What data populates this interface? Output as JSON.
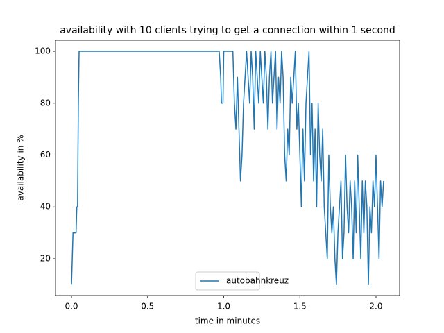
{
  "chart_data": {
    "type": "line",
    "title": "availability with 10 clients trying to get a connection within 1 second",
    "x_label": "time in minutes",
    "y_label": "availability in %",
    "x": [
      0,
      0.005,
      0.01,
      0.03,
      0.035,
      0.04,
      0.045,
      0.05,
      0.97,
      0.98,
      0.985,
      0.995,
      1.0,
      1.05,
      1.06,
      1.07,
      1.08,
      1.09,
      1.1,
      1.11,
      1.12,
      1.13,
      1.14,
      1.15,
      1.16,
      1.17,
      1.18,
      1.19,
      1.2,
      1.21,
      1.22,
      1.23,
      1.24,
      1.25,
      1.26,
      1.27,
      1.28,
      1.29,
      1.3,
      1.31,
      1.32,
      1.33,
      1.34,
      1.35,
      1.36,
      1.37,
      1.38,
      1.39,
      1.4,
      1.41,
      1.42,
      1.43,
      1.44,
      1.45,
      1.46,
      1.47,
      1.48,
      1.49,
      1.5,
      1.51,
      1.52,
      1.53,
      1.54,
      1.55,
      1.56,
      1.57,
      1.58,
      1.59,
      1.6,
      1.61,
      1.62,
      1.63,
      1.64,
      1.65,
      1.66,
      1.67,
      1.68,
      1.69,
      1.7,
      1.71,
      1.72,
      1.73,
      1.74,
      1.75,
      1.76,
      1.77,
      1.78,
      1.79,
      1.8,
      1.81,
      1.82,
      1.83,
      1.84,
      1.85,
      1.86,
      1.87,
      1.88,
      1.89,
      1.9,
      1.91,
      1.92,
      1.93,
      1.94,
      1.95,
      1.96,
      1.97,
      1.98,
      1.99,
      2.0,
      2.01,
      2.02,
      2.03,
      2.04,
      2.05
    ],
    "series": [
      {
        "name": "autobahnkreuz",
        "color": "#1f77b4",
        "values": [
          10,
          20,
          30,
          30,
          40,
          40,
          80,
          100,
          100,
          90,
          80,
          80,
          100,
          100,
          100,
          80,
          70,
          90,
          70,
          50,
          60,
          80,
          90,
          100,
          90,
          80,
          100,
          90,
          70,
          100,
          90,
          80,
          100,
          90,
          80,
          100,
          90,
          70,
          90,
          100,
          80,
          90,
          100,
          70,
          90,
          80,
          100,
          90,
          60,
          50,
          70,
          60,
          90,
          80,
          90,
          100,
          70,
          80,
          60,
          40,
          70,
          50,
          80,
          90,
          100,
          60,
          80,
          50,
          70,
          40,
          80,
          60,
          50,
          70,
          40,
          30,
          20,
          60,
          40,
          30,
          40,
          20,
          10,
          30,
          40,
          50,
          20,
          30,
          60,
          40,
          30,
          50,
          40,
          20,
          50,
          30,
          60,
          40,
          20,
          50,
          30,
          50,
          40,
          10,
          40,
          30,
          50,
          40,
          60,
          40,
          20,
          50,
          40,
          50
        ]
      }
    ],
    "xlim": [
      -0.105,
      2.155
    ],
    "ylim": [
      5.8,
      104.3
    ],
    "xticks": [
      {
        "value": 0,
        "label": "0.0"
      },
      0.5,
      {
        "value": 1,
        "label": "1.0"
      },
      1.5,
      {
        "value": 2,
        "label": "2.0"
      }
    ],
    "yticks": [
      20,
      40,
      60,
      80,
      100
    ],
    "legend": "lower center"
  }
}
